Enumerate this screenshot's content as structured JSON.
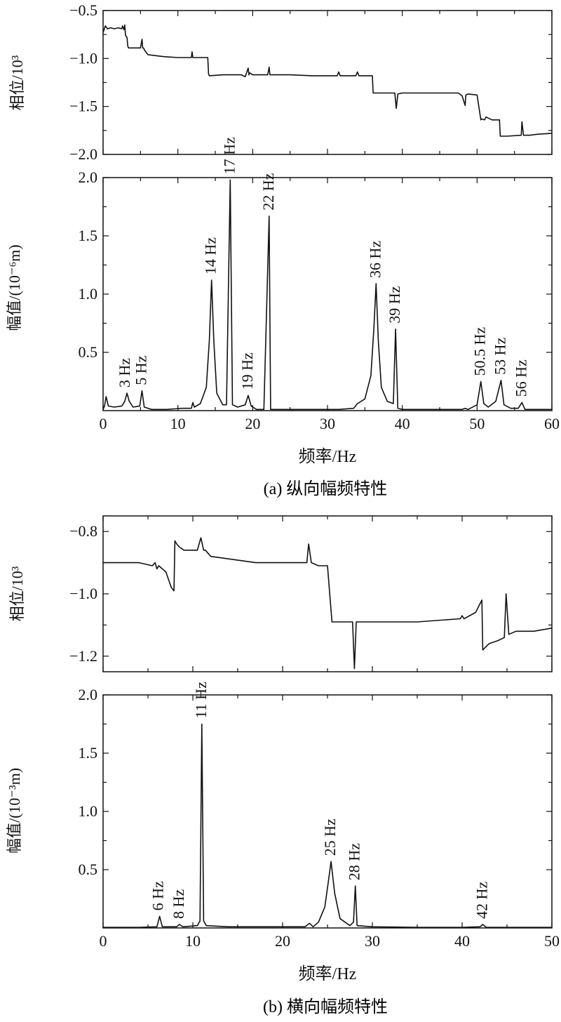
{
  "chart_data": [
    {
      "id": "a-phase",
      "type": "line",
      "ylabel": "相位/10³",
      "xlim": [
        0,
        60
      ],
      "ylim": [
        -2.0,
        -0.5
      ],
      "yticks": [
        -2.0,
        -1.5,
        -1.0,
        -0.5
      ],
      "ytick_labels": [
        "−2.0",
        "−1.5",
        "−1.0",
        "−0.5"
      ],
      "series": [
        {
          "x": [
            0,
            0.3,
            0.6,
            1.0,
            1.5,
            2.0,
            2.5,
            2.6,
            2.8,
            2.9,
            3.0,
            3.2,
            3.3,
            3.4,
            5.0,
            5.2,
            5.3,
            5.4,
            5.6,
            6.0,
            8.0,
            10.0,
            11.8,
            11.9,
            12.0,
            12.2,
            14.0,
            14.1,
            14.2,
            16.0,
            17.0,
            18.5,
            19.0,
            19.4,
            19.5,
            19.6,
            20.0,
            21.0,
            22.0,
            22.2,
            22.3,
            22.5,
            25.0,
            28.0,
            31.3,
            31.5,
            31.7,
            32.0,
            33.8,
            34.0,
            34.2,
            35.0,
            36.0,
            36.1,
            36.3,
            38.0,
            39.0,
            39.2,
            39.4,
            40.0,
            45.0,
            47.5,
            48.0,
            48.4,
            48.5,
            48.8,
            50.0,
            50.5,
            50.6,
            51.0,
            51.2,
            52.0,
            53.0,
            53.1,
            54.0,
            55.9,
            56.0,
            56.2,
            57.0,
            58.0,
            60.0
          ],
          "y": [
            -0.73,
            -0.66,
            -0.69,
            -0.68,
            -0.69,
            -0.68,
            -0.69,
            -0.66,
            -0.7,
            -0.65,
            -0.76,
            -0.78,
            -0.87,
            -0.89,
            -0.89,
            -0.8,
            -0.89,
            -0.89,
            -0.92,
            -0.96,
            -0.98,
            -0.99,
            -0.99,
            -0.93,
            -0.99,
            -0.99,
            -0.99,
            -1.16,
            -1.18,
            -1.17,
            -1.17,
            -1.17,
            -1.19,
            -1.1,
            -1.17,
            -1.15,
            -1.17,
            -1.17,
            -1.17,
            -1.09,
            -1.17,
            -1.17,
            -1.17,
            -1.18,
            -1.18,
            -1.14,
            -1.18,
            -1.18,
            -1.18,
            -1.14,
            -1.18,
            -1.18,
            -1.18,
            -1.36,
            -1.36,
            -1.36,
            -1.36,
            -1.52,
            -1.37,
            -1.36,
            -1.36,
            -1.36,
            -1.39,
            -1.49,
            -1.38,
            -1.37,
            -1.38,
            -1.64,
            -1.63,
            -1.64,
            -1.61,
            -1.64,
            -1.64,
            -1.81,
            -1.81,
            -1.8,
            -1.66,
            -1.8,
            -1.8,
            -1.79,
            -1.78
          ]
        }
      ]
    },
    {
      "id": "a-amp",
      "type": "line",
      "ylabel": "幅值/(10⁻⁶m)",
      "xlabel": "频率/Hz",
      "xlim": [
        0,
        60
      ],
      "ylim": [
        0,
        2.0
      ],
      "xticks": [
        0,
        10,
        20,
        30,
        40,
        50,
        60
      ],
      "yticks": [
        0.5,
        1.0,
        1.5,
        2.0
      ],
      "ytick_labels": [
        "0.5",
        "1.0",
        "1.5",
        "2.0"
      ],
      "series": [
        {
          "x": [
            0,
            0.2,
            0.4,
            0.7,
            1.5,
            2.5,
            2.9,
            3.2,
            3.5,
            4.0,
            4.9,
            5.2,
            5.5,
            6.5,
            8.5,
            10.5,
            11.8,
            12.0,
            12.2,
            13.0,
            13.8,
            14.2,
            14.5,
            14.8,
            15.2,
            16.0,
            16.5,
            17.0,
            17.3,
            18.0,
            19.0,
            19.4,
            19.8,
            20.5,
            21.5,
            22.2,
            22.4,
            23.0,
            26.0,
            29.0,
            31.5,
            33.5,
            34.0,
            35.0,
            35.8,
            36.2,
            36.5,
            36.8,
            37.2,
            38.0,
            38.8,
            39.1,
            39.4,
            40.0,
            44.0,
            48.0,
            48.4,
            48.8,
            50.0,
            50.5,
            50.9,
            51.5,
            52.5,
            53.2,
            53.6,
            54.5,
            55.5,
            56.0,
            56.4,
            57.0,
            60.0
          ],
          "y": [
            0.01,
            0.04,
            0.12,
            0.04,
            0.03,
            0.04,
            0.08,
            0.15,
            0.08,
            0.03,
            0.04,
            0.17,
            0.03,
            0.01,
            0.01,
            0.02,
            0.02,
            0.07,
            0.03,
            0.06,
            0.2,
            0.6,
            1.12,
            0.6,
            0.15,
            0.05,
            0.05,
            1.98,
            0.05,
            0.03,
            0.05,
            0.13,
            0.04,
            0.01,
            0.01,
            1.67,
            0.01,
            0.01,
            0.01,
            0.01,
            0.01,
            0.02,
            0.06,
            0.1,
            0.3,
            0.7,
            1.09,
            0.6,
            0.2,
            0.08,
            0.06,
            0.7,
            0.02,
            0.01,
            0.01,
            0.01,
            0.02,
            0.01,
            0.05,
            0.25,
            0.06,
            0.03,
            0.08,
            0.26,
            0.05,
            0.02,
            0.02,
            0.07,
            0.01,
            0.01,
            0.01
          ]
        }
      ],
      "annotations": [
        {
          "x": 3,
          "y": 0.15,
          "text": "3 Hz"
        },
        {
          "x": 5.2,
          "y": 0.17,
          "text": "5 Hz"
        },
        {
          "x": 14.5,
          "y": 1.12,
          "text": "14 Hz"
        },
        {
          "x": 17.0,
          "y": 1.98,
          "text": "17 Hz"
        },
        {
          "x": 19.4,
          "y": 0.13,
          "text": "19 Hz"
        },
        {
          "x": 22.2,
          "y": 1.67,
          "text": "22 Hz"
        },
        {
          "x": 36.5,
          "y": 1.09,
          "text": "36 Hz"
        },
        {
          "x": 39.1,
          "y": 0.7,
          "text": "39 Hz"
        },
        {
          "x": 50.5,
          "y": 0.25,
          "text": "50.5 Hz"
        },
        {
          "x": 53.2,
          "y": 0.26,
          "text": "53 Hz"
        },
        {
          "x": 56.0,
          "y": 0.07,
          "text": "56 Hz"
        }
      ]
    },
    {
      "id": "b-phase",
      "type": "line",
      "ylabel": "相位/10³",
      "xlim": [
        0,
        50
      ],
      "ylim": [
        -1.25,
        -0.75
      ],
      "yticks": [
        -1.2,
        -1.0,
        -0.8
      ],
      "ytick_labels": [
        "−1.2",
        "−1.0",
        "−0.8"
      ],
      "series": [
        {
          "x": [
            0,
            2,
            4,
            5.5,
            5.8,
            6.0,
            6.2,
            7.0,
            7.6,
            7.9,
            8.0,
            8.2,
            8.5,
            9.0,
            10.5,
            10.9,
            11.2,
            11.4,
            12.0,
            17.0,
            22.7,
            22.9,
            23.2,
            24.0,
            25.0,
            25.5,
            26.0,
            27.8,
            28.0,
            28.2,
            29.0,
            35.0,
            39.8,
            40.0,
            40.2,
            41.5,
            42.2,
            42.3,
            43.0,
            44.0,
            44.7,
            44.9,
            45.2,
            46.0,
            48.0,
            50.0
          ],
          "y": [
            -0.9,
            -0.9,
            -0.9,
            -0.91,
            -0.9,
            -0.92,
            -0.91,
            -0.93,
            -0.98,
            -0.99,
            -0.83,
            -0.84,
            -0.85,
            -0.86,
            -0.86,
            -0.82,
            -0.86,
            -0.86,
            -0.88,
            -0.9,
            -0.9,
            -0.84,
            -0.9,
            -0.91,
            -0.91,
            -1.09,
            -1.09,
            -1.09,
            -1.24,
            -1.09,
            -1.09,
            -1.09,
            -1.08,
            -1.07,
            -1.08,
            -1.06,
            -1.02,
            -1.18,
            -1.16,
            -1.15,
            -1.14,
            -1.0,
            -1.13,
            -1.12,
            -1.12,
            -1.11
          ]
        }
      ]
    },
    {
      "id": "b-amp",
      "type": "line",
      "ylabel": "幅值/(10⁻³m)",
      "xlabel": "频率/Hz",
      "xlim": [
        0,
        50
      ],
      "ylim": [
        0,
        2.0
      ],
      "xticks": [
        0,
        10,
        20,
        30,
        40,
        50
      ],
      "yticks": [
        0.5,
        1.0,
        1.5,
        2.0
      ],
      "ytick_labels": [
        "0.5",
        "1.0",
        "1.5",
        "2.0"
      ],
      "series": [
        {
          "x": [
            0,
            4,
            6.0,
            6.3,
            6.6,
            7.5,
            8.2,
            8.5,
            8.9,
            10.5,
            10.8,
            11.0,
            11.2,
            11.5,
            14,
            20,
            22.5,
            23.0,
            23.4,
            24.0,
            24.7,
            25.1,
            25.4,
            25.8,
            26.4,
            27.5,
            27.9,
            28.1,
            28.3,
            30,
            35,
            40,
            42.0,
            42.3,
            42.7,
            45,
            50
          ],
          "y": [
            0.005,
            0.005,
            0.01,
            0.1,
            0.01,
            0.01,
            0.01,
            0.03,
            0.01,
            0.02,
            0.06,
            1.75,
            0.06,
            0.02,
            0.01,
            0.01,
            0.01,
            0.04,
            0.01,
            0.05,
            0.18,
            0.4,
            0.57,
            0.3,
            0.08,
            0.02,
            0.05,
            0.36,
            0.02,
            0.01,
            0.005,
            0.005,
            0.01,
            0.03,
            0.005,
            0.005,
            0.005
          ]
        }
      ],
      "annotations": [
        {
          "x": 6.2,
          "y": 0.1,
          "text": "6 Hz"
        },
        {
          "x": 8.5,
          "y": 0.03,
          "text": "8 Hz"
        },
        {
          "x": 11.0,
          "y": 1.75,
          "text": "11 Hz"
        },
        {
          "x": 25.4,
          "y": 0.57,
          "text": "25 Hz"
        },
        {
          "x": 28.1,
          "y": 0.36,
          "text": "28 Hz"
        },
        {
          "x": 42.3,
          "y": 0.03,
          "text": "42 Hz"
        }
      ]
    }
  ],
  "captions": {
    "a": "(a) 纵向幅频特性",
    "b": "(b) 横向幅频特性"
  }
}
